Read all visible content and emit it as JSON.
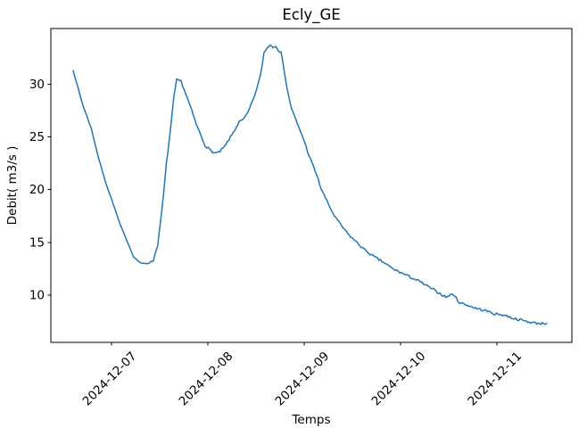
{
  "figure": {
    "title": "Ecly_GE",
    "xlabel": "Temps",
    "ylabel": "Debit( m3/s )"
  },
  "colors": {
    "line": "#1f77b4",
    "axes": "#000000",
    "text": "#000000",
    "background": "#ffffff"
  },
  "chart_data": {
    "type": "line",
    "title": "Ecly_GE",
    "xlabel": "Temps",
    "ylabel": "Debit( m3/s )",
    "grid": false,
    "legend": null,
    "x_tick_labels": [
      "2024-12-07",
      "2024-12-08",
      "2024-12-09",
      "2024-12-10",
      "2024-12-11"
    ],
    "x_tick_days": [
      0,
      1,
      2,
      3,
      4
    ],
    "y_ticks": [
      10,
      15,
      20,
      25,
      30
    ],
    "xlim_days": [
      -0.63,
      4.78
    ],
    "ylim": [
      5.5,
      35.3
    ],
    "series": [
      {
        "name": "debit",
        "color": "#1f77b4",
        "line_width": 1.5,
        "t_days": [
          -0.398,
          -0.3,
          -0.21,
          -0.14,
          -0.065,
          0.019,
          0.093,
          0.167,
          0.231,
          0.306,
          0.38,
          0.435,
          0.48,
          0.51,
          0.54,
          0.57,
          0.61,
          0.648,
          0.676,
          0.722,
          0.787,
          0.833,
          0.88,
          0.926,
          0.972,
          1.019,
          1.065,
          1.111,
          1.176,
          1.25,
          1.324,
          1.361,
          1.398,
          1.435,
          1.472,
          1.509,
          1.546,
          1.583,
          1.62,
          1.648,
          1.676,
          1.704,
          1.731,
          1.759,
          1.787,
          1.815,
          1.843,
          1.87,
          1.898,
          1.944,
          1.991,
          2.037,
          2.083,
          2.13,
          2.176,
          2.222,
          2.269,
          2.315,
          2.361,
          2.454,
          2.546,
          2.639,
          2.731,
          2.824,
          2.917,
          3.009,
          3.102,
          3.194,
          3.287,
          3.38,
          3.472,
          3.546,
          3.611,
          3.704,
          3.796,
          3.889,
          3.981,
          4.074,
          4.167,
          4.259,
          4.352,
          4.444,
          4.519
        ],
        "values": [
          31.3,
          28.1,
          25.8,
          23.2,
          20.8,
          18.6,
          16.6,
          15.0,
          13.6,
          13.0,
          13.0,
          13.3,
          14.8,
          17.0,
          19.5,
          22.5,
          25.5,
          28.8,
          30.4,
          30.3,
          28.7,
          27.5,
          26.2,
          25.2,
          24.2,
          23.8,
          23.5,
          23.5,
          24.1,
          25.2,
          26.4,
          26.6,
          27.0,
          27.7,
          28.6,
          29.6,
          30.8,
          33.0,
          33.5,
          33.8,
          33.5,
          33.7,
          33.3,
          33.0,
          31.7,
          30.0,
          28.7,
          27.7,
          27.0,
          25.9,
          24.9,
          23.6,
          22.5,
          21.4,
          20.1,
          19.2,
          18.3,
          17.5,
          16.9,
          15.8,
          15.0,
          14.2,
          13.6,
          13.1,
          12.5,
          12.1,
          11.7,
          11.3,
          10.8,
          10.3,
          9.8,
          10.1,
          9.3,
          9.0,
          8.7,
          8.5,
          8.2,
          8.1,
          7.8,
          7.6,
          7.4,
          7.3,
          7.3
        ]
      }
    ],
    "noise": {
      "amplitude": 0.11,
      "amplitude_smooth_region": 0.04,
      "smooth_until_t": 0.42,
      "step_days": 0.015,
      "seed": 7
    }
  }
}
